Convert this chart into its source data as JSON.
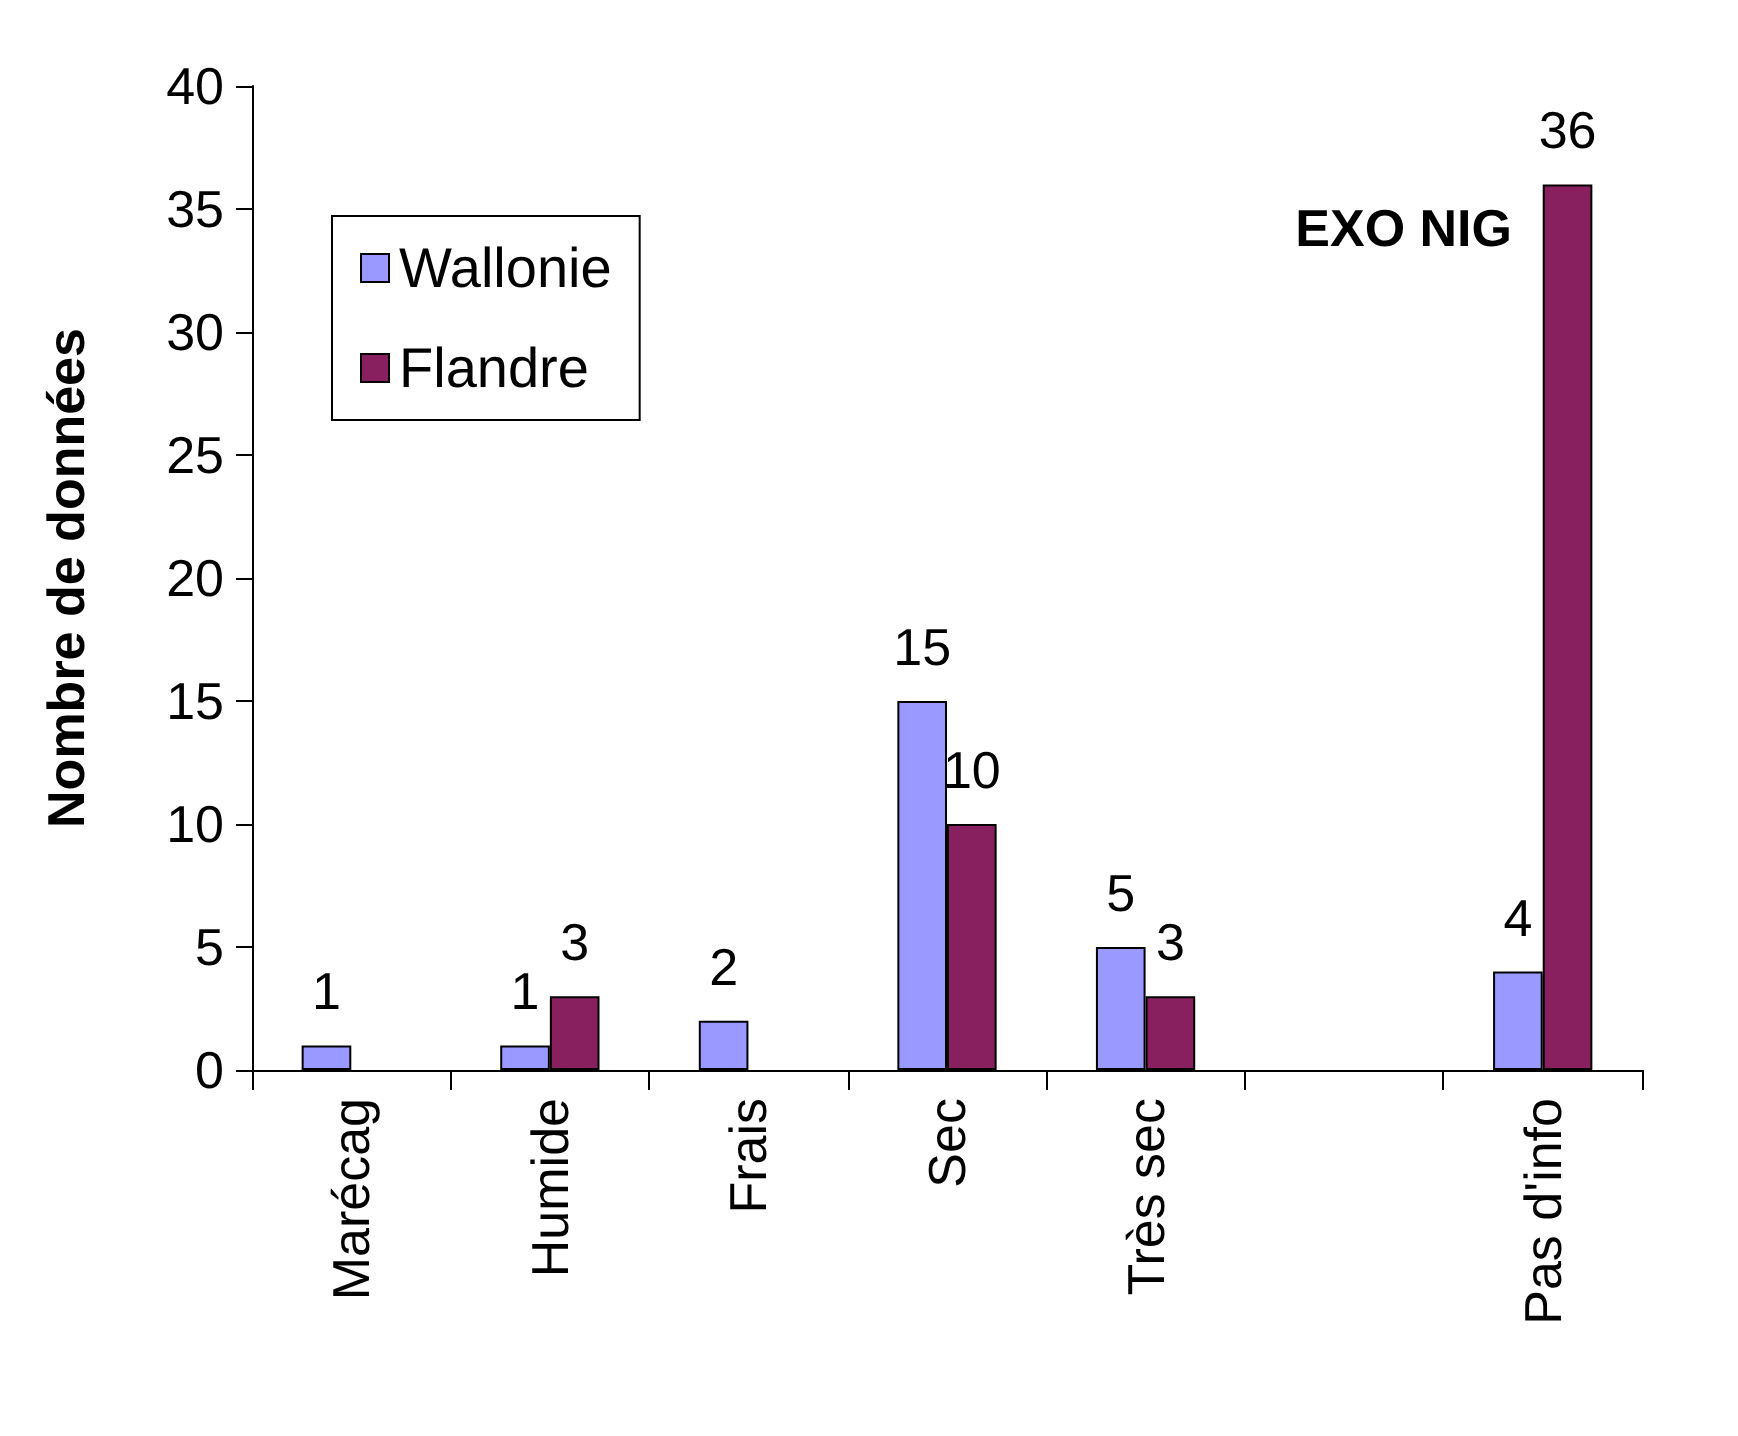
{
  "chart_data": {
    "type": "bar",
    "title": "EXO NIG",
    "ylabel": "Nombre de données",
    "categories": [
      "Marécag",
      "Humide",
      "Frais",
      "Sec",
      "Très sec",
      null,
      "Pas d'info"
    ],
    "series": [
      {
        "name": "Wallonie",
        "color": "#9999ff",
        "values": [
          1,
          1,
          2,
          15,
          5,
          null,
          4
        ]
      },
      {
        "name": "Flandre",
        "color": "#882060",
        "values": [
          null,
          3,
          null,
          10,
          3,
          null,
          36
        ]
      }
    ],
    "ylim": [
      0,
      40
    ],
    "yticks": [
      0,
      5,
      10,
      15,
      20,
      25,
      30,
      35,
      40
    ],
    "grid": false,
    "legend": "top left",
    "data_labels": true
  }
}
